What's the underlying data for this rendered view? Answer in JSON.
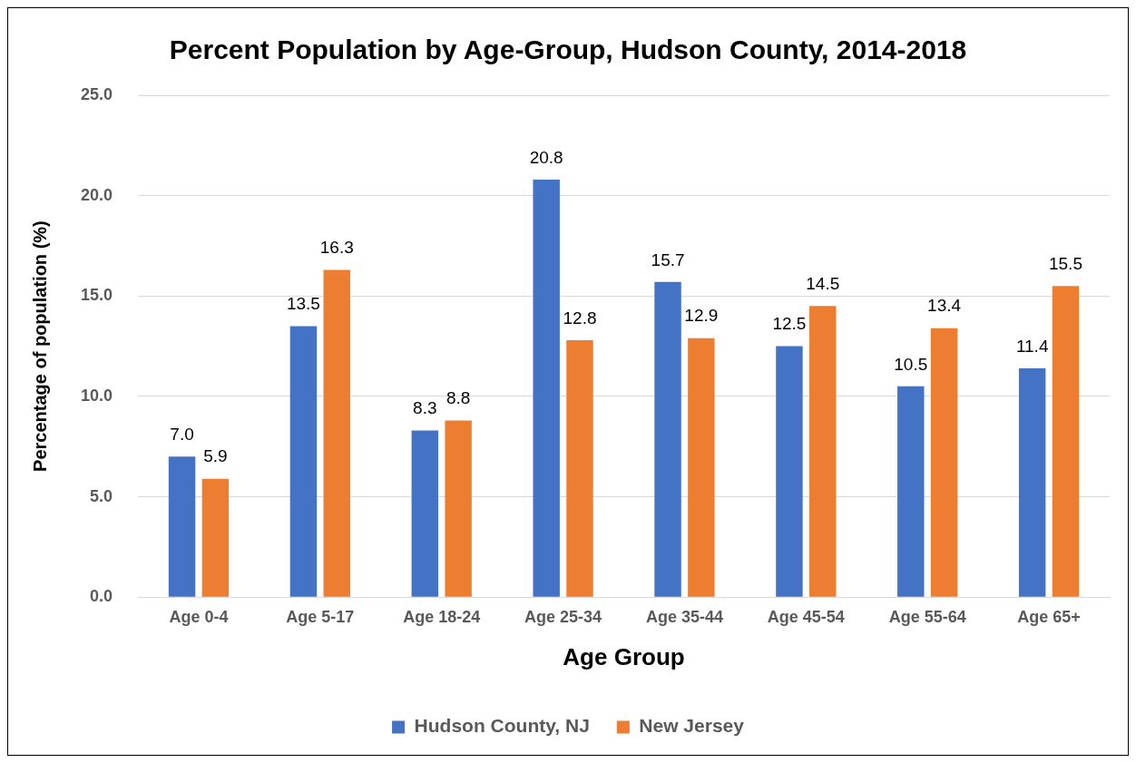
{
  "chart_data": {
    "type": "bar",
    "title": "Percent Population by Age-Group, Hudson County, 2014-2018",
    "xlabel": "Age Group",
    "ylabel": "Percentage of population (%)",
    "categories": [
      "Age 0-4",
      "Age 5-17",
      "Age 18-24",
      "Age 25-34",
      "Age 35-44",
      "Age 45-54",
      "Age 55-64",
      "Age 65+"
    ],
    "series": [
      {
        "name": "Hudson County, NJ",
        "color": "#4472c4",
        "values": [
          7.0,
          13.5,
          8.3,
          20.8,
          15.7,
          12.5,
          10.5,
          11.4
        ],
        "value_labels": [
          "7.0",
          "13.5",
          "8.3",
          "20.8",
          "15.7",
          "12.5",
          "10.5",
          "11.4"
        ]
      },
      {
        "name": "New Jersey",
        "color": "#ed7d31",
        "values": [
          5.9,
          16.3,
          8.8,
          12.8,
          12.9,
          14.5,
          13.4,
          15.5
        ],
        "value_labels": [
          "5.9",
          "16.3",
          "8.8",
          "12.8",
          "12.9",
          "14.5",
          "13.4",
          "15.5"
        ]
      }
    ],
    "ylim": [
      0,
      25
    ],
    "yticks": [
      {
        "value": 0,
        "label": "0.0"
      },
      {
        "value": 5,
        "label": "5.0"
      },
      {
        "value": 10,
        "label": "10.0"
      },
      {
        "value": 15,
        "label": "15.0"
      },
      {
        "value": 20,
        "label": "20.0"
      },
      {
        "value": 25,
        "label": "25.0"
      }
    ],
    "grid": "y",
    "legend": "bottom"
  }
}
